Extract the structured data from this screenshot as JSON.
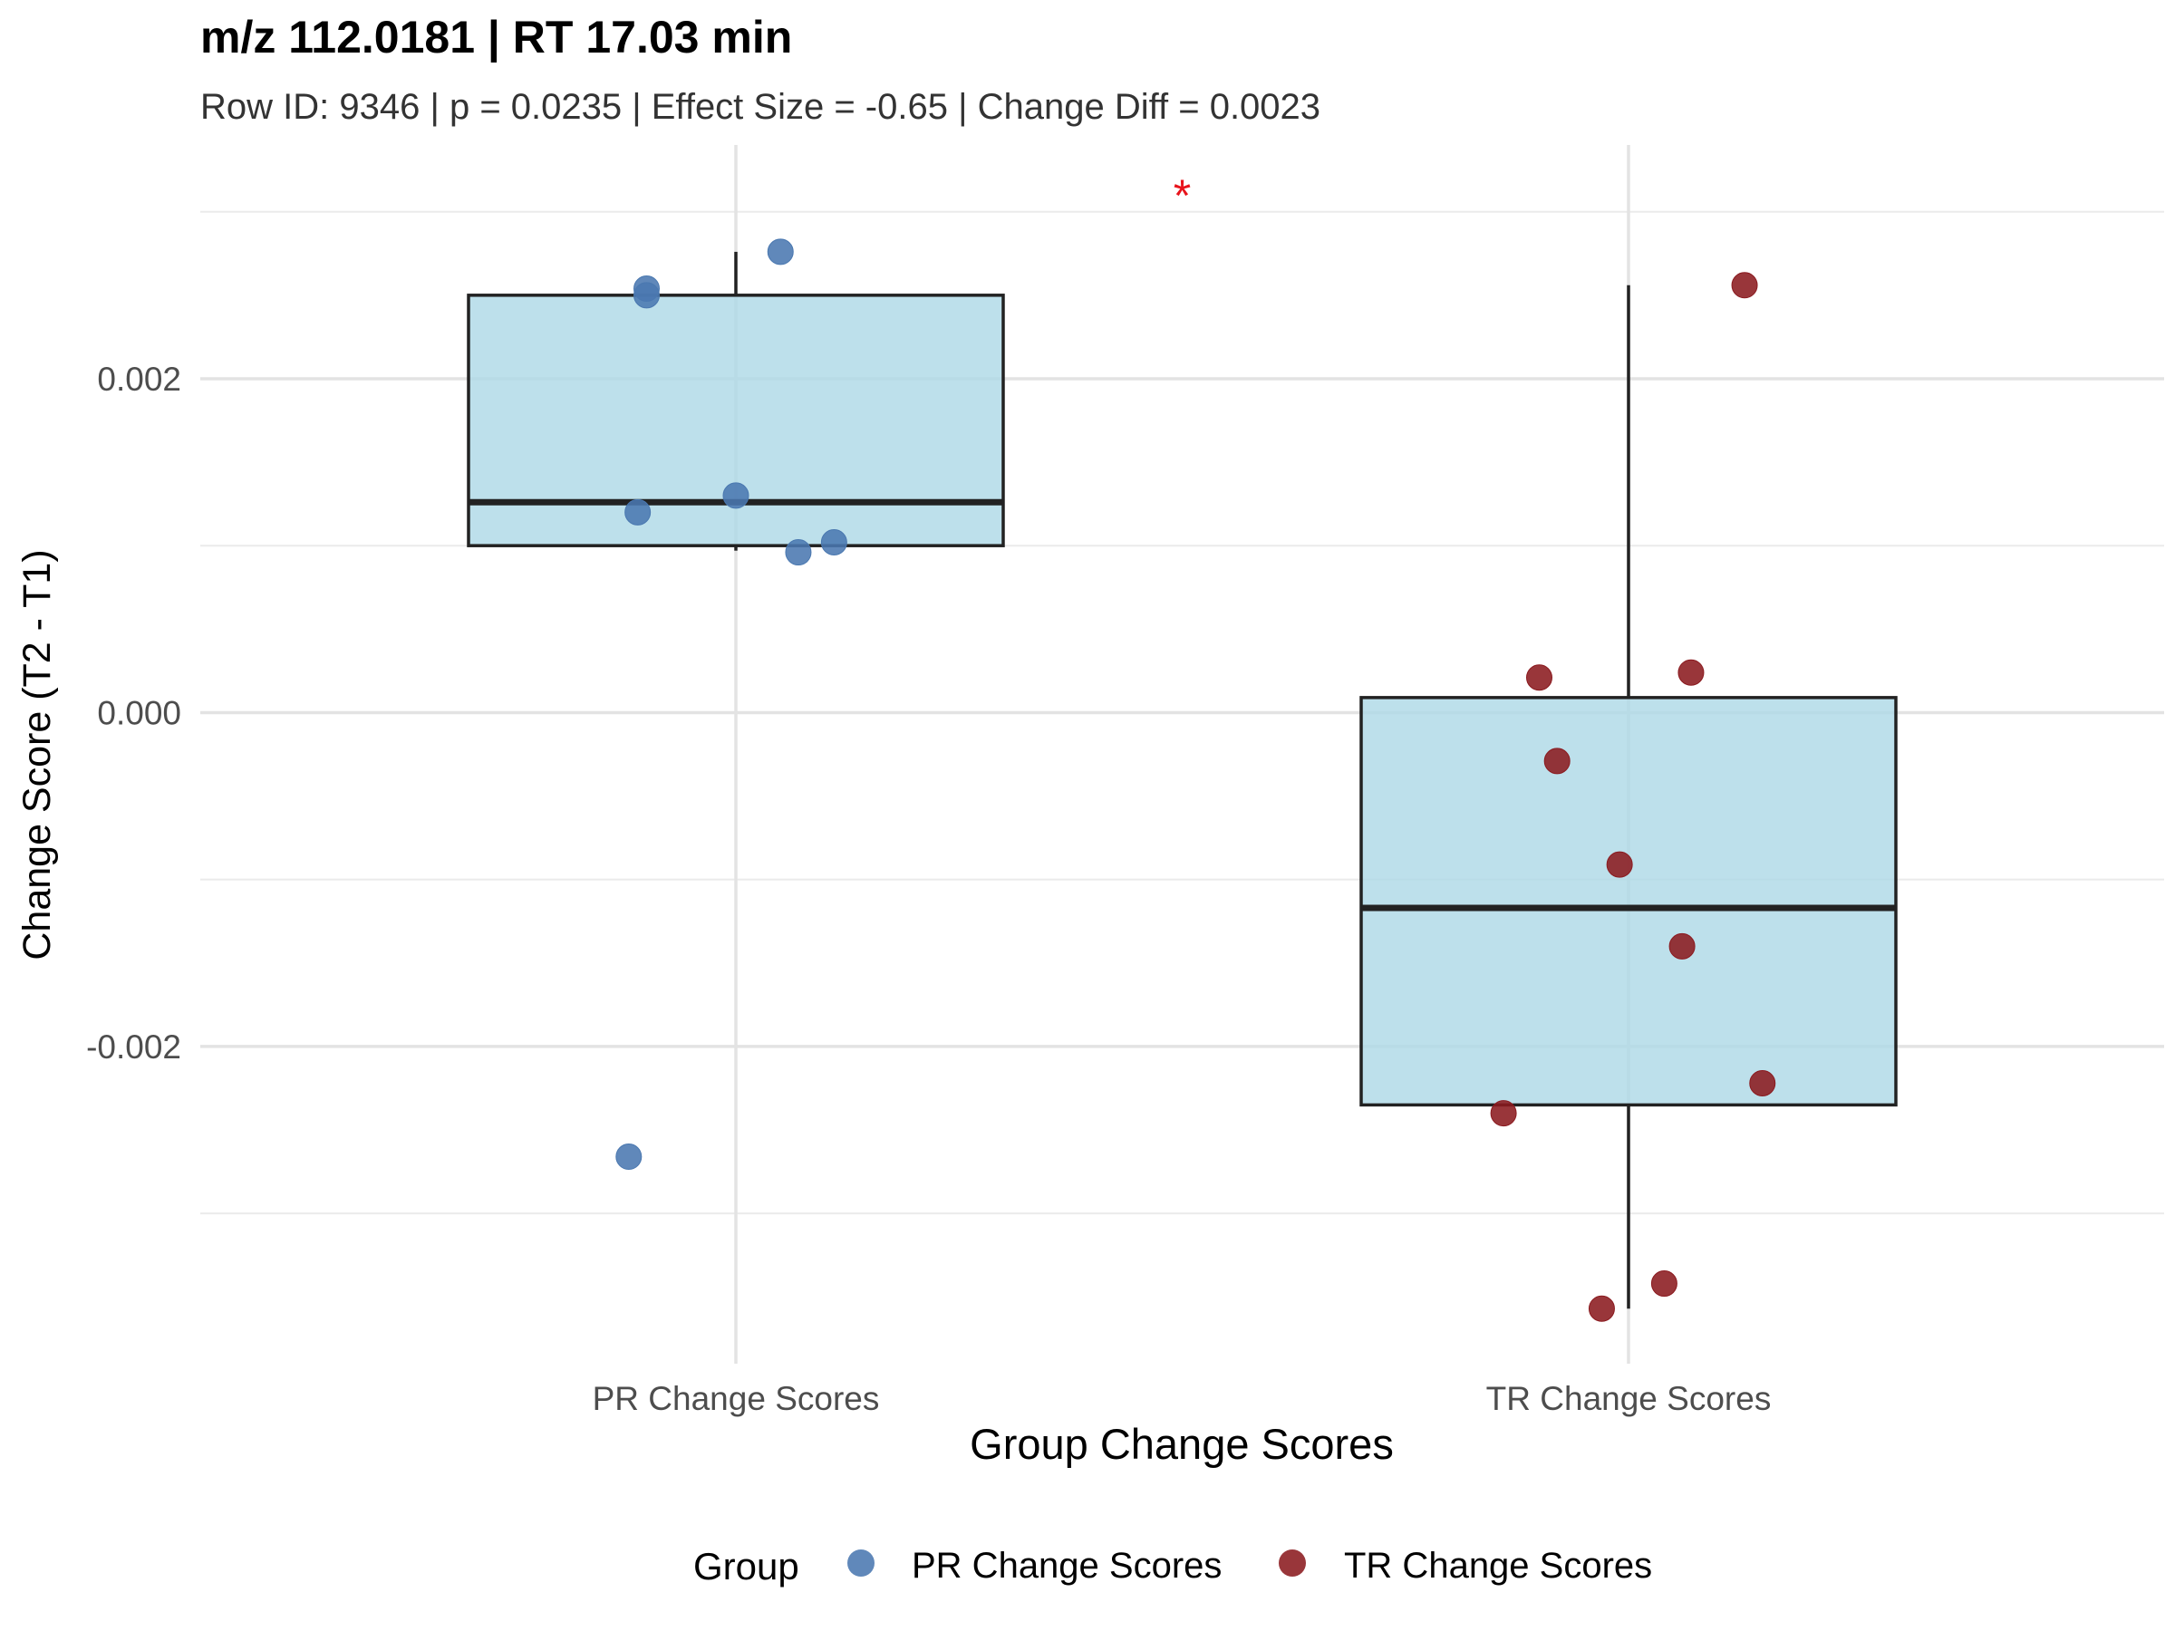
{
  "chart_data": {
    "type": "box",
    "title": "m/z 112.0181 | RT 17.03 min",
    "subtitle": "Row ID: 9346 | p = 0.0235 | Effect Size = -0.65 | Change Diff = 0.0023",
    "xlabel": "Group Change Scores",
    "ylabel": "Change Score (T2 - T1)",
    "categories": [
      "PR Change Scores",
      "TR Change Scores"
    ],
    "ylim": [
      -0.0039,
      0.0034
    ],
    "yticks": [
      0.002,
      0.0,
      -0.002
    ],
    "ytick_labels": [
      "0.002",
      "0.000",
      "-0.002"
    ],
    "grid": true,
    "significance_marker": "*",
    "significance_color": "#e8141c",
    "box_fill": "#add8e6",
    "box_stroke": "#222222",
    "boxes": [
      {
        "category": "PR Change Scores",
        "whisker_low": 0.00097,
        "q1": 0.001,
        "median": 0.00126,
        "q3": 0.0025,
        "whisker_high": 0.00276
      },
      {
        "category": "TR Change Scores",
        "whisker_low": -0.00357,
        "q1": -0.00235,
        "median": -0.00117,
        "q3": 9e-05,
        "whisker_high": 0.00256
      }
    ],
    "series": [
      {
        "name": "PR Change Scores",
        "color": "#4a78b0",
        "category": "PR Change Scores",
        "points": [
          {
            "jitter": 0.05,
            "y": 0.00276
          },
          {
            "jitter": -0.1,
            "y": 0.00254
          },
          {
            "jitter": -0.1,
            "y": 0.0025
          },
          {
            "jitter": 0.0,
            "y": 0.0013
          },
          {
            "jitter": -0.11,
            "y": 0.0012
          },
          {
            "jitter": 0.07,
            "y": 0.00096
          },
          {
            "jitter": 0.11,
            "y": 0.00102
          },
          {
            "jitter": -0.12,
            "y": -0.00266
          }
        ]
      },
      {
        "name": "TR Change Scores",
        "color": "#8b1a1f",
        "category": "TR Change Scores",
        "points": [
          {
            "jitter": 0.13,
            "y": 0.00256
          },
          {
            "jitter": -0.1,
            "y": 0.00021
          },
          {
            "jitter": 0.07,
            "y": 0.00024
          },
          {
            "jitter": -0.08,
            "y": -0.00029
          },
          {
            "jitter": -0.01,
            "y": -0.00091
          },
          {
            "jitter": 0.06,
            "y": -0.0014
          },
          {
            "jitter": 0.15,
            "y": -0.00222
          },
          {
            "jitter": -0.14,
            "y": -0.0024
          },
          {
            "jitter": 0.04,
            "y": -0.00342
          },
          {
            "jitter": -0.03,
            "y": -0.00357
          }
        ]
      }
    ],
    "legend": {
      "title": "Group",
      "position": "bottom"
    }
  }
}
